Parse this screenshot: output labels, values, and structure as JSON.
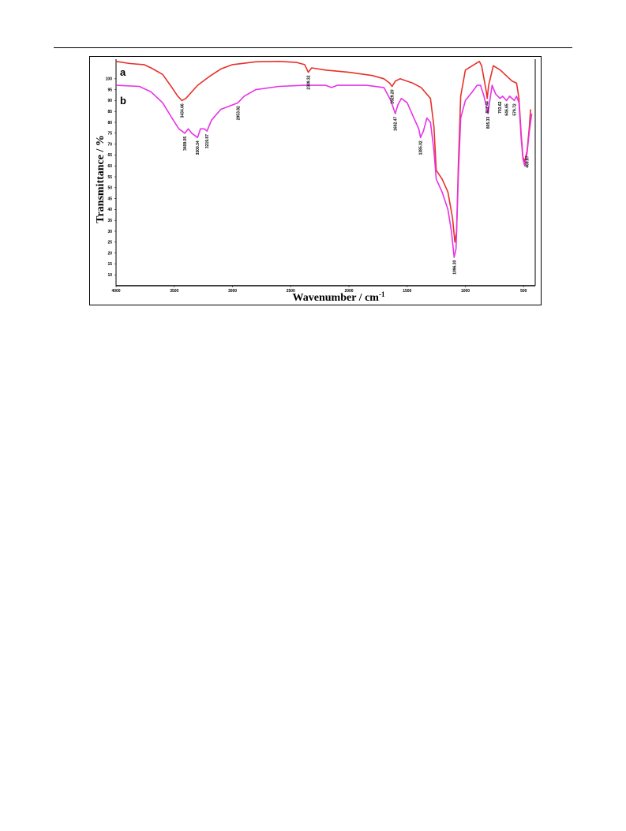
{
  "chart_data": {
    "type": "line",
    "ylabel": "Transmittance / %",
    "xlabel": "Wavenumber / cm",
    "xlabel_superscript": "-1",
    "xlim": [
      4000,
      400
    ],
    "ylim": [
      5,
      105
    ],
    "x_ticks": [
      "4000",
      "3500",
      "3000",
      "2500",
      "2000",
      "1500",
      "1000",
      "500"
    ],
    "x_tick_values": [
      4000,
      3500,
      3000,
      2500,
      2000,
      1500,
      1000,
      500
    ],
    "y_ticks": [
      "10",
      "15",
      "20",
      "25",
      "30",
      "35",
      "40",
      "45",
      "50",
      "55",
      "60",
      "65",
      "70",
      "75",
      "80",
      "85",
      "90",
      "95",
      "100"
    ],
    "y_tick_values": [
      10,
      15,
      20,
      25,
      30,
      35,
      40,
      45,
      50,
      55,
      60,
      65,
      70,
      75,
      80,
      85,
      90,
      95,
      100
    ],
    "series": [
      {
        "name": "a",
        "color": "#e8302a",
        "points": [
          [
            4000,
            108
          ],
          [
            3880,
            107
          ],
          [
            3760,
            106.5
          ],
          [
            3700,
            105
          ],
          [
            3600,
            102
          ],
          [
            3520,
            96
          ],
          [
            3470,
            92
          ],
          [
            3434,
            90
          ],
          [
            3400,
            91
          ],
          [
            3300,
            97
          ],
          [
            3200,
            101
          ],
          [
            3100,
            104.5
          ],
          [
            3000,
            106.5
          ],
          [
            2800,
            107.8
          ],
          [
            2600,
            108
          ],
          [
            2450,
            107.5
          ],
          [
            2380,
            106.5
          ],
          [
            2349,
            103
          ],
          [
            2320,
            105
          ],
          [
            2200,
            104
          ],
          [
            2000,
            103
          ],
          [
            1800,
            101.5
          ],
          [
            1700,
            100
          ],
          [
            1650,
            98
          ],
          [
            1629,
            96.5
          ],
          [
            1600,
            99
          ],
          [
            1560,
            100
          ],
          [
            1450,
            98
          ],
          [
            1380,
            96
          ],
          [
            1300,
            91
          ],
          [
            1270,
            78
          ],
          [
            1250,
            58
          ],
          [
            1200,
            54
          ],
          [
            1150,
            48
          ],
          [
            1110,
            36
          ],
          [
            1090,
            25
          ],
          [
            1075,
            30
          ],
          [
            1060,
            60
          ],
          [
            1040,
            92
          ],
          [
            1000,
            104
          ],
          [
            940,
            106
          ],
          [
            880,
            108
          ],
          [
            860,
            106
          ],
          [
            840,
            100
          ],
          [
            820,
            94
          ],
          [
            812,
            91
          ],
          [
            800,
            97
          ],
          [
            760,
            106
          ],
          [
            700,
            104
          ],
          [
            640,
            101
          ],
          [
            600,
            99
          ],
          [
            560,
            98
          ],
          [
            540,
            91
          ],
          [
            520,
            74
          ],
          [
            505,
            64
          ],
          [
            490,
            62
          ],
          [
            470,
            67
          ],
          [
            450,
            78
          ],
          [
            440,
            86
          ]
        ],
        "peaks": [
          {
            "x": 3434.66,
            "label": "3434.66"
          },
          {
            "x": 2349.32,
            "label": "2349.32"
          },
          {
            "x": 1629.2,
            "label": "1629.20"
          },
          {
            "x": 812.44,
            "label": "812.44"
          }
        ]
      },
      {
        "name": "b",
        "color": "#e633e6",
        "points": [
          [
            4000,
            97
          ],
          [
            3800,
            96.5
          ],
          [
            3700,
            94
          ],
          [
            3600,
            89
          ],
          [
            3520,
            82
          ],
          [
            3460,
            77
          ],
          [
            3409,
            75
          ],
          [
            3380,
            77
          ],
          [
            3350,
            75
          ],
          [
            3300,
            73
          ],
          [
            3275,
            77
          ],
          [
            3240,
            77
          ],
          [
            3219,
            76
          ],
          [
            3180,
            81
          ],
          [
            3100,
            86
          ],
          [
            3000,
            88
          ],
          [
            2953,
            89
          ],
          [
            2900,
            92
          ],
          [
            2800,
            95
          ],
          [
            2600,
            96.5
          ],
          [
            2400,
            97
          ],
          [
            2200,
            97
          ],
          [
            2150,
            96
          ],
          [
            2100,
            97
          ],
          [
            2000,
            97
          ],
          [
            1850,
            97
          ],
          [
            1700,
            96
          ],
          [
            1640,
            90
          ],
          [
            1602,
            84
          ],
          [
            1580,
            88
          ],
          [
            1550,
            91
          ],
          [
            1500,
            89
          ],
          [
            1450,
            83
          ],
          [
            1400,
            77
          ],
          [
            1385,
            73
          ],
          [
            1360,
            76
          ],
          [
            1330,
            82
          ],
          [
            1300,
            80
          ],
          [
            1270,
            67
          ],
          [
            1250,
            54
          ],
          [
            1200,
            48
          ],
          [
            1150,
            40
          ],
          [
            1120,
            30
          ],
          [
            1096,
            18
          ],
          [
            1080,
            22
          ],
          [
            1060,
            55
          ],
          [
            1040,
            82
          ],
          [
            1000,
            90
          ],
          [
            940,
            94
          ],
          [
            900,
            97
          ],
          [
            870,
            97
          ],
          [
            840,
            92
          ],
          [
            805,
            84
          ],
          [
            790,
            90
          ],
          [
            770,
            97
          ],
          [
            740,
            93
          ],
          [
            703,
            91
          ],
          [
            680,
            92
          ],
          [
            646,
            90
          ],
          [
            620,
            92
          ],
          [
            579,
            90
          ],
          [
            560,
            92
          ],
          [
            540,
            89
          ],
          [
            520,
            72
          ],
          [
            505,
            63
          ],
          [
            490,
            60
          ],
          [
            470,
            66
          ],
          [
            450,
            76
          ],
          [
            430,
            84
          ]
        ],
        "peaks": [
          {
            "x": 3409.05,
            "label": "3409.05"
          },
          {
            "x": 3300.34,
            "label": "3300.34"
          },
          {
            "x": 3219.87,
            "label": "3219.87"
          },
          {
            "x": 2953.82,
            "label": "2953.82"
          },
          {
            "x": 1602.47,
            "label": "1602.47"
          },
          {
            "x": 1385.02,
            "label": "1385.02"
          },
          {
            "x": 1096.3,
            "label": "1096.30"
          },
          {
            "x": 805.33,
            "label": "805.33"
          },
          {
            "x": 703.62,
            "label": "703.62"
          },
          {
            "x": 646.65,
            "label": "646.65"
          },
          {
            "x": 579.72,
            "label": "579.72"
          },
          {
            "x": 469.87,
            "label": "469.87"
          }
        ]
      }
    ],
    "grid": false,
    "legend": "series letters at top-left"
  }
}
